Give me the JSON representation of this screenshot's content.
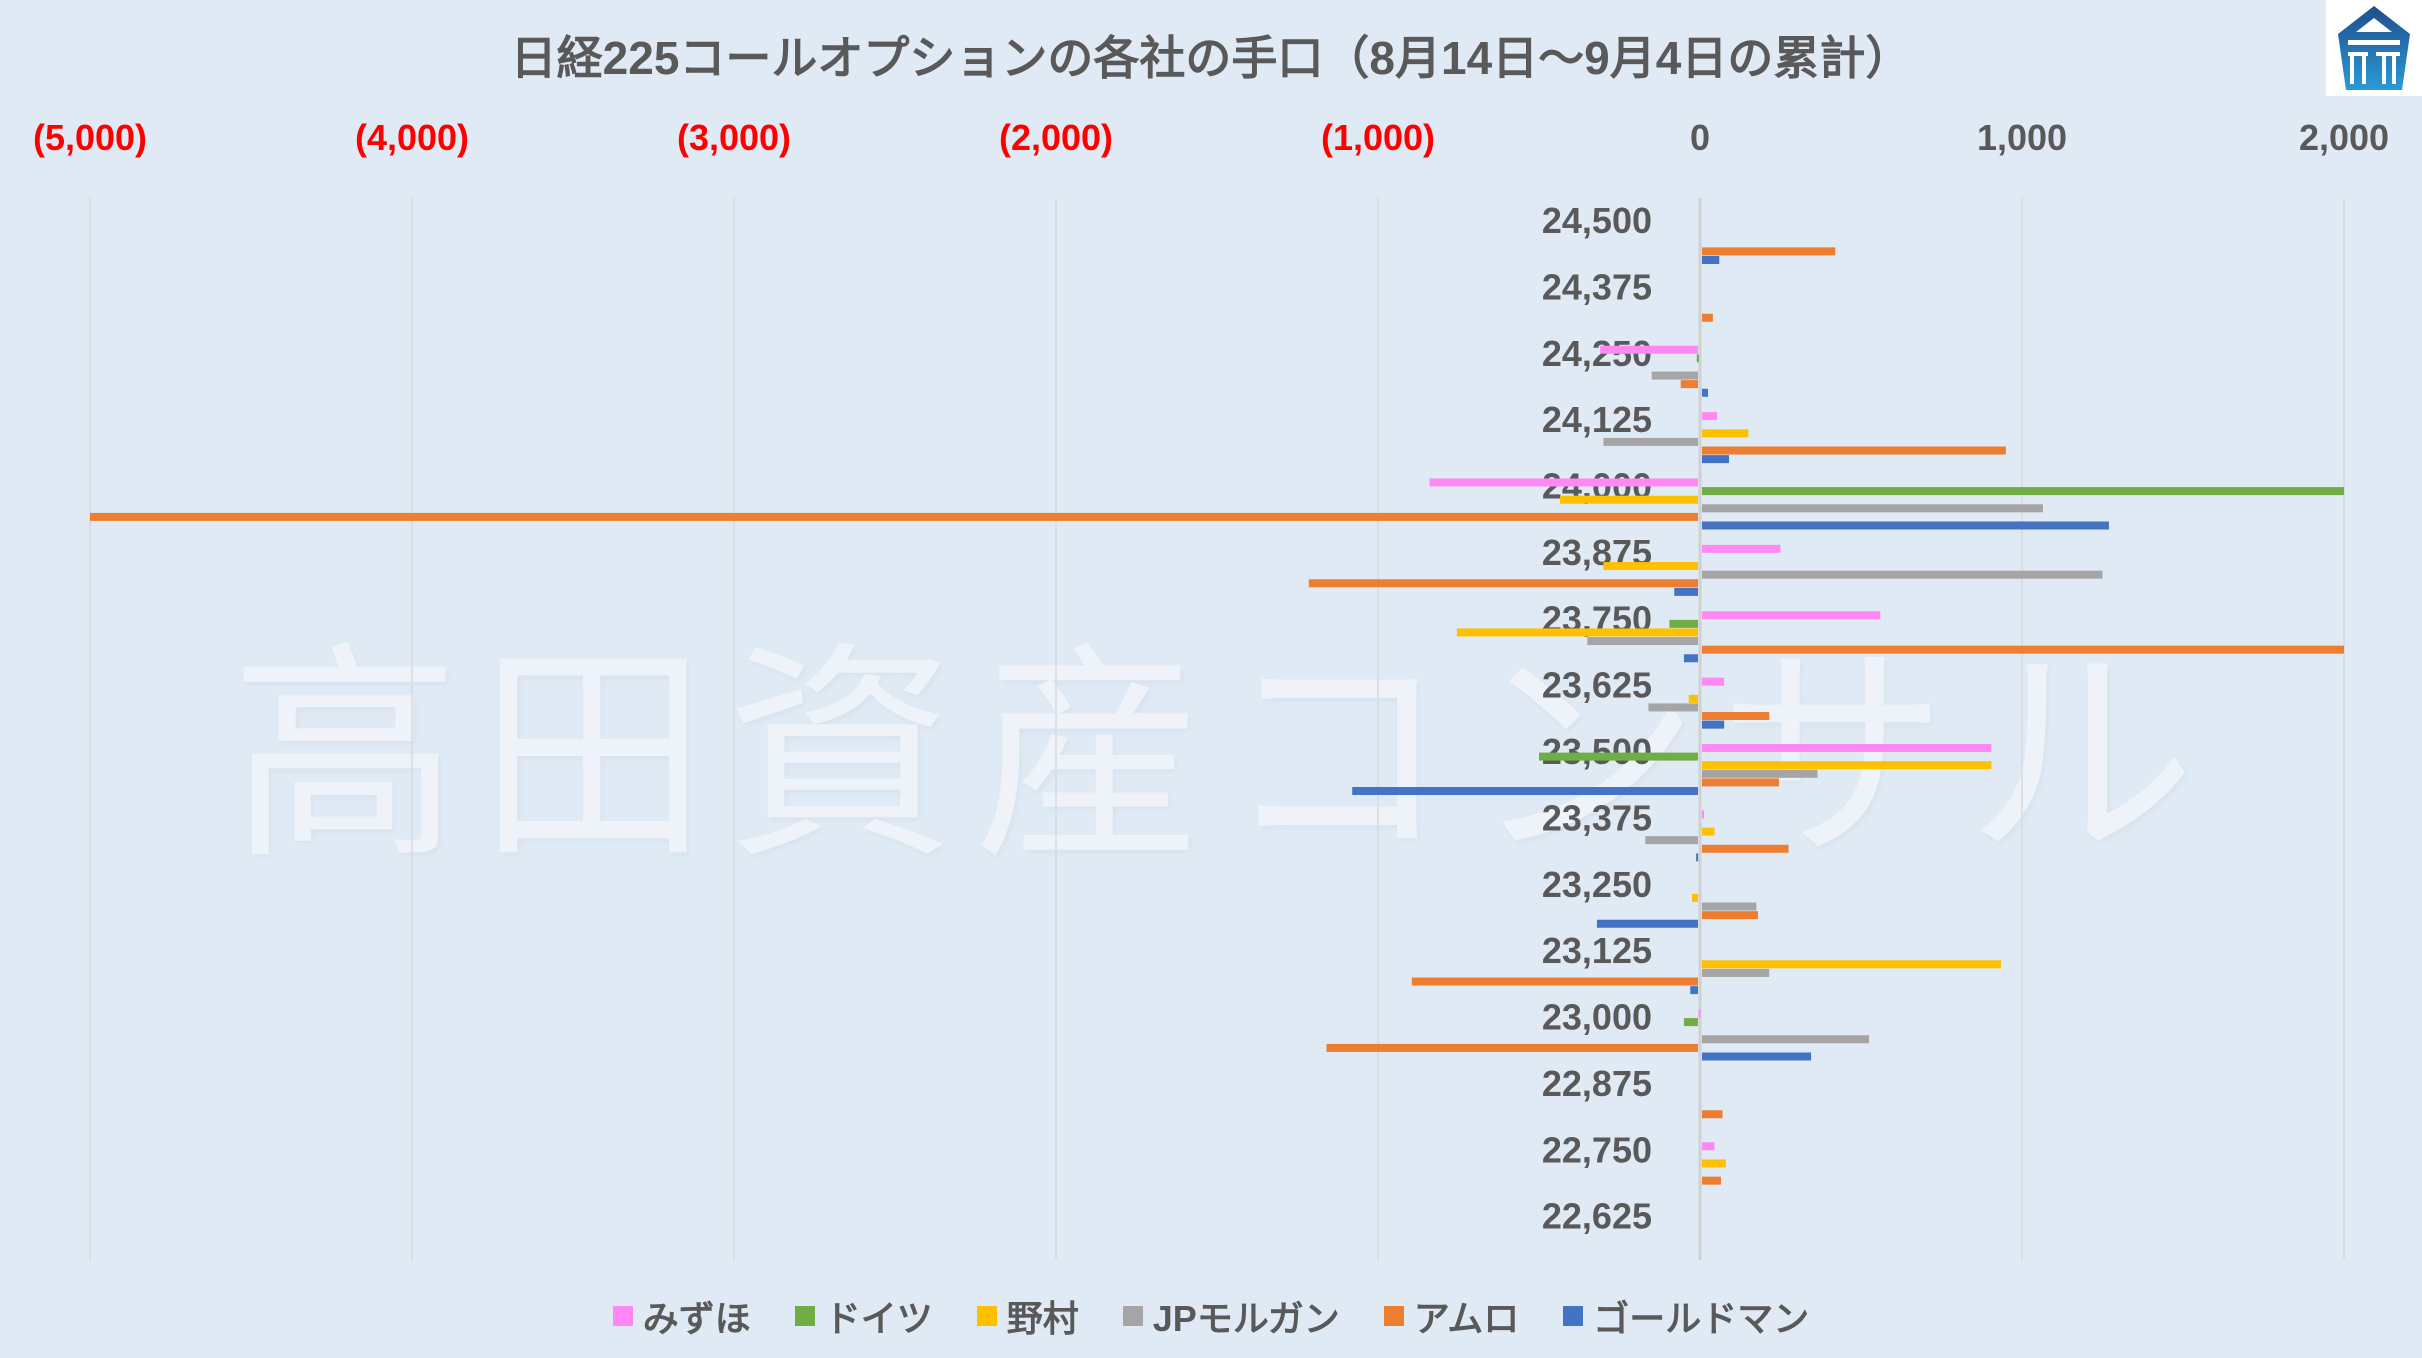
{
  "chart_data": {
    "type": "bar",
    "orientation": "horizontal",
    "title": "日経225コールオプションの各社の手口（8月14日～9月4日の累計）",
    "xlabel": "",
    "ylabel": "",
    "xlim": [
      -5000,
      2000
    ],
    "x_ticks": [
      -5000,
      -4000,
      -3000,
      -2000,
      -1000,
      0,
      1000,
      2000
    ],
    "x_tick_labels": [
      "(5,000)",
      "(4,000)",
      "(3,000)",
      "(2,000)",
      "(1,000)",
      "0",
      "1,000",
      "2,000"
    ],
    "x_axis_position": "top",
    "negative_tick_color": "#ff0000",
    "grid": true,
    "legend_position": "bottom",
    "categories": [
      "24,500",
      "24,375",
      "24,250",
      "24,125",
      "24,000",
      "23,875",
      "23,750",
      "23,625",
      "23,500",
      "23,375",
      "23,250",
      "23,125",
      "23,000",
      "22,875",
      "22,750",
      "22,625"
    ],
    "series": [
      {
        "name": "みずほ",
        "color": "#ff88f5",
        "values": [
          0,
          0,
          -310,
          53,
          -840,
          250,
          560,
          75,
          905,
          3,
          0,
          0,
          -5,
          0,
          45,
          0
        ]
      },
      {
        "name": "ドイツ",
        "color": "#70ad47",
        "values": [
          0,
          0,
          -10,
          0,
          2000,
          0,
          -95,
          0,
          -500,
          0,
          0,
          0,
          -50,
          0,
          0,
          0
        ]
      },
      {
        "name": "野村",
        "color": "#ffc000",
        "values": [
          0,
          0,
          0,
          150,
          -435,
          -300,
          -755,
          -35,
          905,
          45,
          -25,
          935,
          0,
          0,
          80,
          0
        ]
      },
      {
        "name": "JPモルガン",
        "color": "#a5a5a5",
        "values": [
          0,
          0,
          -150,
          -300,
          1065,
          1250,
          -350,
          -160,
          365,
          -170,
          175,
          215,
          525,
          0,
          0,
          0
        ]
      },
      {
        "name": "アムロ",
        "color": "#ed7d31",
        "values": [
          420,
          40,
          -60,
          950,
          -5000,
          -1215,
          2000,
          215,
          245,
          275,
          180,
          -895,
          -1160,
          70,
          65,
          0
        ]
      },
      {
        "name": "ゴールドマン",
        "color": "#4472c4",
        "values": [
          60,
          0,
          25,
          90,
          1270,
          -80,
          -50,
          75,
          -1080,
          -12,
          -320,
          -30,
          345,
          0,
          0,
          0
        ]
      }
    ]
  },
  "watermark": "高田資産コンサル",
  "logo": "company-logo"
}
